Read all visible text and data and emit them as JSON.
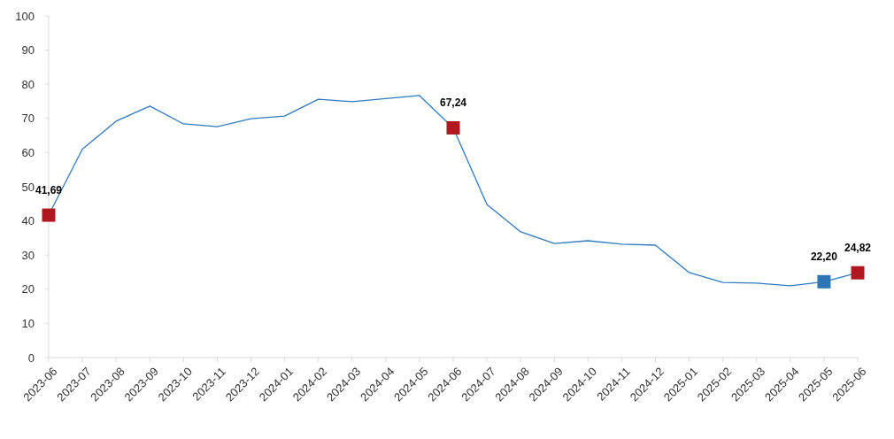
{
  "chart_data": {
    "type": "line",
    "categories": [
      "2023-06",
      "2023-07",
      "2023-08",
      "2023-09",
      "2023-10",
      "2023-11",
      "2023-12",
      "2024-01",
      "2024-02",
      "2024-03",
      "2024-04",
      "2024-05",
      "2024-06",
      "2024-07",
      "2024-08",
      "2024-09",
      "2024-10",
      "2024-11",
      "2024-12",
      "2025-01",
      "2025-02",
      "2025-03",
      "2025-04",
      "2025-05",
      "2025-06"
    ],
    "ylim": [
      0,
      100
    ],
    "yticks": [
      0,
      10,
      20,
      30,
      40,
      50,
      60,
      70,
      80,
      90,
      100
    ],
    "series": [
      {
        "color": "#2e7bbf",
        "marker": "none",
        "values": [
          41.69,
          61,
          69.2,
          73.6,
          68.4,
          67.6,
          69.9,
          70.7,
          75.6,
          74.9,
          75.8,
          76.7,
          67.24,
          44.8,
          36.8,
          33.4,
          34.2,
          33.2,
          32.9,
          24.9,
          22,
          21.8,
          21,
          22.2,
          24.82
        ]
      },
      {
        "type": "scatter",
        "marker": "square",
        "color": "#b0171f",
        "colors": [
          "#b0171f",
          null,
          null,
          null,
          null,
          null,
          null,
          null,
          null,
          null,
          null,
          null,
          "#b0171f",
          null,
          null,
          null,
          null,
          null,
          null,
          null,
          null,
          null,
          null,
          "#2e75b6",
          "#b0171f"
        ],
        "values": [
          41.69,
          null,
          null,
          null,
          null,
          null,
          null,
          null,
          null,
          null,
          null,
          null,
          67.24,
          null,
          null,
          null,
          null,
          null,
          null,
          null,
          null,
          null,
          null,
          22.2,
          24.82
        ],
        "value_labels": [
          "41,69",
          null,
          null,
          null,
          null,
          null,
          null,
          null,
          null,
          null,
          null,
          null,
          "67,24",
          null,
          null,
          null,
          null,
          null,
          null,
          null,
          null,
          null,
          null,
          "22,20",
          "24,82"
        ]
      }
    ]
  }
}
